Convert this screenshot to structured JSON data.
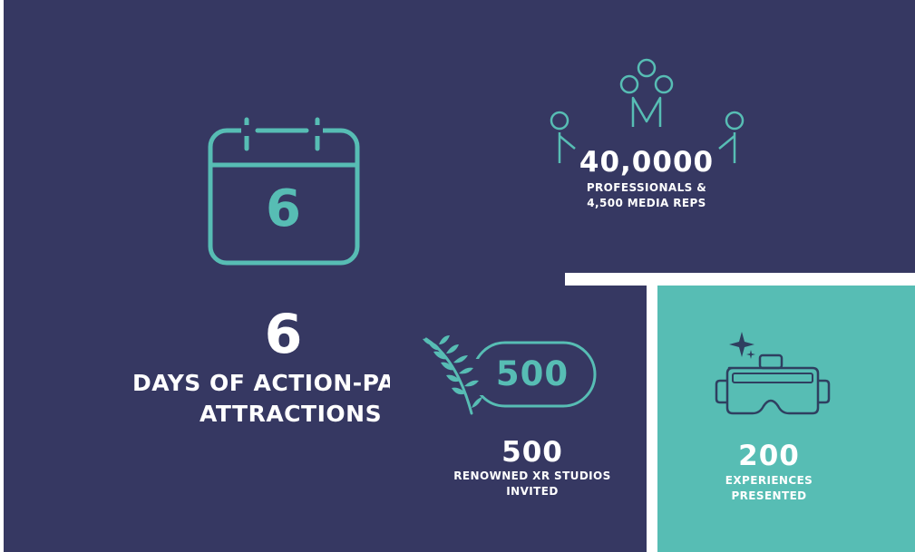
{
  "calendar": {
    "icon": "calendar-icon",
    "day_number": "6"
  },
  "days_stat": {
    "value": "6",
    "caption_line1": "DAYS OF ACTION-PACKED",
    "caption_line2": "ATTRACTIONS"
  },
  "professionals_stat": {
    "icon": "people-icon",
    "value": "40,0000",
    "caption_line1": "PROFESSIONALS &",
    "caption_line2": "4,500 MEDIA REPS"
  },
  "studios_stat": {
    "icon": "laurel-badge-icon",
    "badge_value": "500",
    "value": "500",
    "caption_line1": "RENOWNED XR STUDIOS",
    "caption_line2": "INVITED"
  },
  "experiences_stat": {
    "icon": "vr-headset-icon",
    "value": "200",
    "caption_line1": "EXPERIENCES",
    "caption_line2": "PRESENTED"
  },
  "colors": {
    "navy": "#363862",
    "teal": "#57bdb4",
    "white": "#ffffff"
  }
}
